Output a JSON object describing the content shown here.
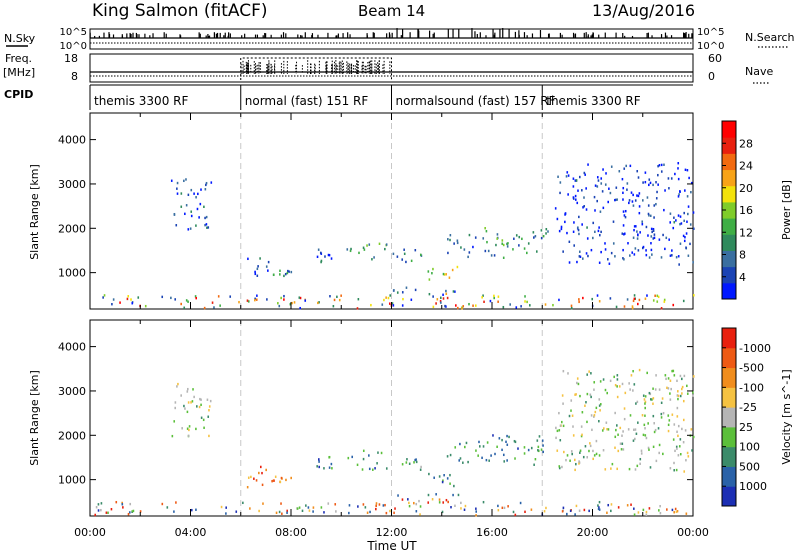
{
  "header": {
    "station": "King Salmon (fitACF)",
    "beam": "Beam 14",
    "date": "13/Aug/2016"
  },
  "status_panel": {
    "nsky_label": "N.Sky",
    "nsky_ticks": [
      "10^5",
      "10^0"
    ],
    "nsearch_label": "N.Search",
    "nsearch_ticks": [
      "10^5",
      "10^0"
    ],
    "freq_label_1": "Freq.",
    "freq_label_2": "[MHz]",
    "freq_ticks": [
      "18",
      "8"
    ],
    "nave_label": "Nave",
    "nave_ticks": [
      "60",
      "0"
    ],
    "cpid_label": "CPID",
    "cpid_segments": [
      {
        "label": "themis 3300 RF",
        "start": 0,
        "end": 6
      },
      {
        "label": "normal (fast) 151 RF",
        "start": 6,
        "end": 12
      },
      {
        "label": "normalsound (fast) 157 RF",
        "start": 12,
        "end": 18
      },
      {
        "label": "themis 3300 RF",
        "start": 18,
        "end": 24
      }
    ]
  },
  "chart_data": [
    {
      "type": "scatter",
      "panel": "power",
      "ylabel": "Slant Range [km]",
      "yticks": [
        1000,
        2000,
        3000,
        4000
      ],
      "ylim": [
        180,
        4600
      ],
      "xlim": [
        0,
        24
      ],
      "colorbar_label": "Power [dB]",
      "colorbar_ticks": [
        "4",
        "8",
        "12",
        "16",
        "20",
        "24",
        "28"
      ],
      "colorbar_colors": [
        "#0018ff",
        "#1a43b4",
        "#3a6fa0",
        "#2f8a5c",
        "#3fae45",
        "#7fcc2a",
        "#f3e20b",
        "#f7a318",
        "#f26a10",
        "#e8200e",
        "#ff0000"
      ],
      "scatter_regions": [
        {
          "x": [
            3.2,
            4.8
          ],
          "y": [
            2000,
            3200
          ],
          "level": 0.15
        },
        {
          "x": [
            6.2,
            7.2
          ],
          "y": [
            850,
            1350
          ],
          "level": 0.15
        },
        {
          "x": [
            7.2,
            8.0
          ],
          "y": [
            950,
            1100
          ],
          "level": 0.3
        },
        {
          "x": [
            9.0,
            9.6
          ],
          "y": [
            1250,
            1550
          ],
          "level": 0.2
        },
        {
          "x": [
            10.2,
            11.8
          ],
          "y": [
            1250,
            1700
          ],
          "level": 0.35
        },
        {
          "x": [
            12.0,
            13.2
          ],
          "y": [
            1250,
            1550
          ],
          "level": 0.25
        },
        {
          "x": [
            13.2,
            14.6
          ],
          "y": [
            850,
            1200
          ],
          "level": 0.55
        },
        {
          "x": [
            14.2,
            15.5
          ],
          "y": [
            1350,
            1900
          ],
          "level": 0.2
        },
        {
          "x": [
            15.5,
            18.2
          ],
          "y": [
            1350,
            2050
          ],
          "level": 0.3
        },
        {
          "x": [
            0.0,
            24.0
          ],
          "y": [
            220,
            520
          ],
          "level": 0.25
        },
        {
          "x": [
            12.0,
            15.0
          ],
          "y": [
            500,
            700
          ],
          "level": 0.3
        },
        {
          "x": [
            18.5,
            24.0
          ],
          "y": [
            1200,
            3500
          ],
          "level": 0.1
        }
      ]
    },
    {
      "type": "scatter",
      "panel": "velocity",
      "ylabel": "Slant Range [km]",
      "yticks": [
        1000,
        2000,
        3000,
        4000
      ],
      "ylim": [
        180,
        4600
      ],
      "xlim": [
        0,
        24
      ],
      "xticks": [
        "00:00",
        "04:00",
        "08:00",
        "12:00",
        "16:00",
        "20:00",
        "00:00"
      ],
      "xlabel": "Time UT",
      "colorbar_label": "Velocity [m s^-1]",
      "colorbar_ticks": [
        "1000",
        "500",
        "100",
        "25",
        "-25",
        "-100",
        "-500",
        "-1000"
      ],
      "colorbar_colors": [
        "#1c2fb4",
        "#2a62a8",
        "#3b8b6a",
        "#5bbf3a",
        "#b5b5b5",
        "#f5c242",
        "#f08d1d",
        "#ee5a14",
        "#e8200e"
      ],
      "scatter_regions": [
        {
          "x": [
            3.2,
            4.8
          ],
          "y": [
            2000,
            3200
          ],
          "level": 0.45
        },
        {
          "x": [
            6.2,
            7.2
          ],
          "y": [
            850,
            1350
          ],
          "level": 0.8
        },
        {
          "x": [
            7.2,
            8.0
          ],
          "y": [
            950,
            1100
          ],
          "level": 0.8
        },
        {
          "x": [
            9.0,
            9.6
          ],
          "y": [
            1250,
            1550
          ],
          "level": 0.25
        },
        {
          "x": [
            10.2,
            11.8
          ],
          "y": [
            1250,
            1700
          ],
          "level": 0.25
        },
        {
          "x": [
            12.0,
            13.2
          ],
          "y": [
            1250,
            1550
          ],
          "level": 0.3
        },
        {
          "x": [
            13.2,
            14.6
          ],
          "y": [
            850,
            1200
          ],
          "level": 0.25
        },
        {
          "x": [
            14.2,
            15.5
          ],
          "y": [
            1350,
            1900
          ],
          "level": 0.25
        },
        {
          "x": [
            15.5,
            18.2
          ],
          "y": [
            1350,
            2050
          ],
          "level": 0.25
        },
        {
          "x": [
            0.0,
            24.0
          ],
          "y": [
            220,
            520
          ],
          "level": 0.45
        },
        {
          "x": [
            12.0,
            15.0
          ],
          "y": [
            500,
            700
          ],
          "level": 0.3
        },
        {
          "x": [
            18.5,
            24.0
          ],
          "y": [
            1200,
            3500
          ],
          "level": 0.45
        }
      ]
    }
  ]
}
